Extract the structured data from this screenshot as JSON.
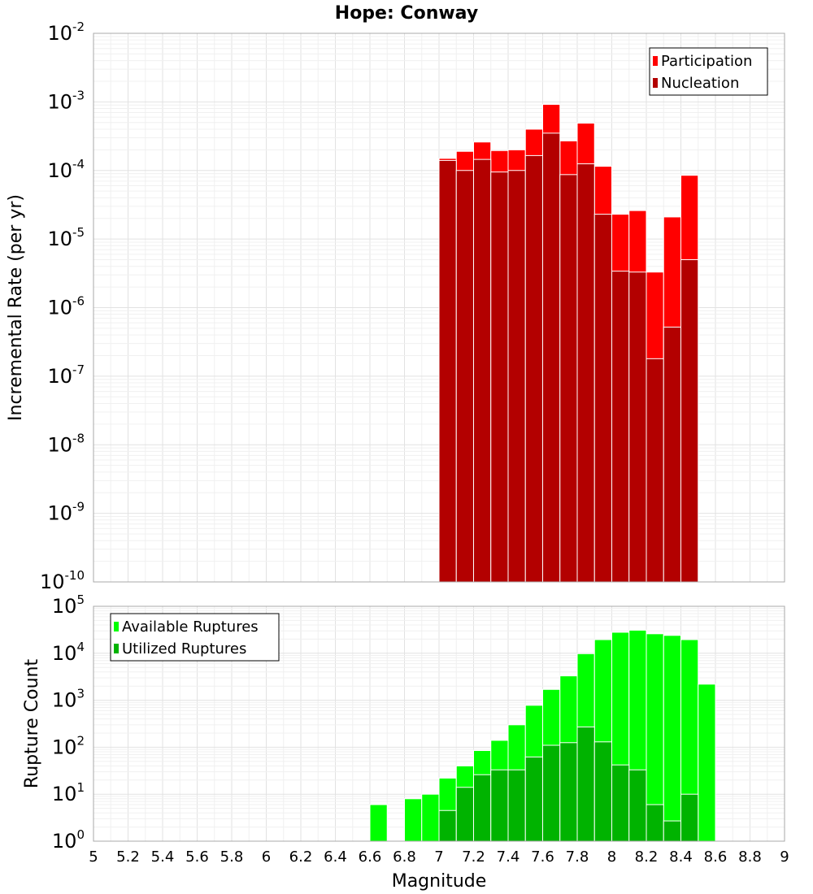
{
  "chart_data": [
    {
      "type": "bar",
      "title": "Hope: Conway",
      "xlabel": "",
      "ylabel": "Incremental Rate (per yr)",
      "yscale": "log",
      "ylim": [
        1e-10,
        0.01
      ],
      "xlim": [
        5,
        9
      ],
      "yticks": [
        {
          "base": "10",
          "exp": "-10"
        },
        {
          "base": "10",
          "exp": "-9"
        },
        {
          "base": "10",
          "exp": "-8"
        },
        {
          "base": "10",
          "exp": "-7"
        },
        {
          "base": "10",
          "exp": "-6"
        },
        {
          "base": "10",
          "exp": "-5"
        },
        {
          "base": "10",
          "exp": "-4"
        },
        {
          "base": "10",
          "exp": "-3"
        },
        {
          "base": "10",
          "exp": "-2"
        }
      ],
      "bin_width": 0.1,
      "legend_position": "top-right",
      "grid": true,
      "x": [
        7.05,
        7.15,
        7.25,
        7.35,
        7.45,
        7.55,
        7.65,
        7.75,
        7.85,
        7.95,
        8.05,
        8.15,
        8.25,
        8.35,
        8.45
      ],
      "series": [
        {
          "name": "Participation",
          "color": "#ff0000",
          "values": [
            0.00015,
            0.00019,
            0.00026,
            0.000195,
            0.0002,
            0.0004,
            0.00092,
            0.00027,
            0.00049,
            0.000115,
            2.3e-05,
            2.6e-05,
            3.3e-06,
            2.1e-05,
            8.5e-05
          ]
        },
        {
          "name": "Nucleation",
          "color": "#b30000",
          "values": [
            0.00014,
            0.0001,
            0.000145,
            9.5e-05,
            0.0001,
            0.000165,
            0.00035,
            8.7e-05,
            0.000125,
            2.3e-05,
            3.4e-06,
            3.3e-06,
            1.8e-07,
            5.2e-07,
            5e-06
          ]
        }
      ]
    },
    {
      "type": "bar",
      "title": "",
      "xlabel": "Magnitude",
      "ylabel": "Rupture Count",
      "yscale": "log",
      "ylim": [
        1,
        100000.0
      ],
      "xlim": [
        5,
        9
      ],
      "xticks": [
        "5",
        "5.2",
        "5.4",
        "5.6",
        "5.8",
        "6",
        "6.2",
        "6.4",
        "6.6",
        "6.8",
        "7",
        "7.2",
        "7.4",
        "7.6",
        "7.8",
        "8",
        "8.2",
        "8.4",
        "8.6",
        "8.8",
        "9"
      ],
      "yticks": [
        {
          "base": "10",
          "exp": "0"
        },
        {
          "base": "10",
          "exp": "1"
        },
        {
          "base": "10",
          "exp": "2"
        },
        {
          "base": "10",
          "exp": "3"
        },
        {
          "base": "10",
          "exp": "4"
        },
        {
          "base": "10",
          "exp": "5"
        }
      ],
      "bin_width": 0.1,
      "legend_position": "top-left",
      "grid": true,
      "x": [
        6.65,
        6.85,
        6.95,
        7.05,
        7.15,
        7.25,
        7.35,
        7.45,
        7.55,
        7.65,
        7.75,
        7.85,
        7.95,
        8.05,
        8.15,
        8.25,
        8.35,
        8.45,
        8.55
      ],
      "series": [
        {
          "name": "Available Ruptures",
          "color": "#00ff00",
          "values": [
            6,
            8,
            10,
            22,
            40,
            85,
            140,
            300,
            780,
            1700,
            3300,
            9800,
            19500,
            28000,
            31000,
            26000,
            24000,
            19500,
            2200
          ]
        },
        {
          "name": "Utilized Ruptures",
          "color": "#00b300",
          "values": [
            0,
            0,
            0,
            4.5,
            14,
            26,
            33,
            33,
            62,
            110,
            125,
            270,
            130,
            42,
            33,
            6,
            2.7,
            10,
            0
          ]
        }
      ]
    }
  ]
}
